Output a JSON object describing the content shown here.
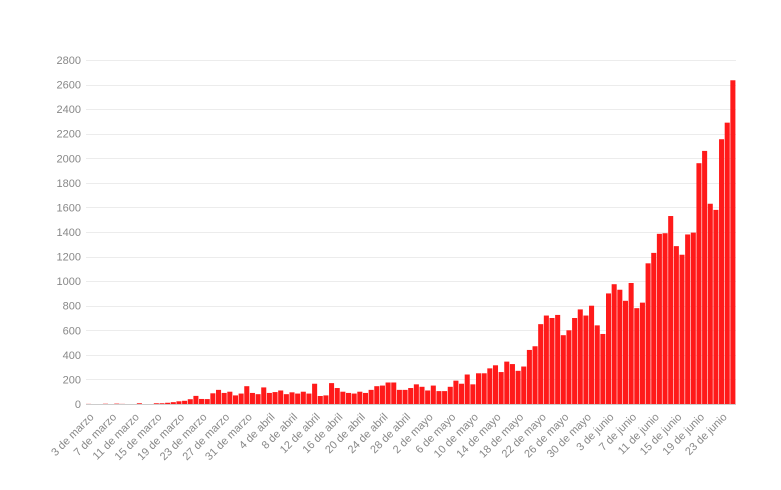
{
  "chart_data": {
    "type": "bar",
    "title": "",
    "xlabel": "",
    "ylabel": "",
    "ylim": [
      0,
      2800
    ],
    "y_ticks": [
      0,
      200,
      400,
      600,
      800,
      1000,
      1200,
      1400,
      1600,
      1800,
      2000,
      2200,
      2400,
      2600,
      2800
    ],
    "grid": true,
    "x_tick_labels": [
      "3 de marzo",
      "7 de marzo",
      "11 de marzo",
      "15 de marzo",
      "19 de marzo",
      "23 de marzo",
      "27 de marzo",
      "31 de marzo",
      "4 de abril",
      "8 de abril",
      "12 de abril",
      "16 de abril",
      "20 de abril",
      "24 de abril",
      "28 de abril",
      "2 de mayo",
      "6 de mayo",
      "10 de mayo",
      "14 de mayo",
      "18 de mayo",
      "22 de mayo",
      "26 de mayo",
      "30 de mayo",
      "3 de junio",
      "7 de junio",
      "11 de junio",
      "15 de junio",
      "19 de junio",
      "23 de junio"
    ],
    "bar_color": "#ff1a1a",
    "series": [
      {
        "values": [
          1,
          0,
          0,
          2,
          0,
          3,
          1,
          0,
          0,
          6,
          0,
          0,
          6,
          6,
          10,
          15,
          22,
          26,
          39,
          66,
          41,
          40,
          87,
          115,
          90,
          100,
          70,
          85,
          145,
          90,
          80,
          135,
          90,
          97,
          110,
          80,
          95,
          85,
          100,
          85,
          165,
          65,
          70,
          170,
          130,
          100,
          90,
          85,
          100,
          90,
          115,
          145,
          150,
          175,
          175,
          115,
          115,
          130,
          160,
          140,
          110,
          150,
          105,
          105,
          140,
          190,
          165,
          240,
          160,
          250,
          250,
          290,
          315,
          260,
          345,
          325,
          270,
          305,
          440,
          470,
          650,
          720,
          700,
          725,
          560,
          600,
          700,
          770,
          720,
          800,
          640,
          570,
          900,
          975,
          930,
          840,
          985,
          780,
          825,
          1145,
          1230,
          1385,
          1390,
          1530,
          1285,
          1215,
          1380,
          1395,
          1960,
          2060,
          1630,
          1580,
          2155,
          2290,
          2635
        ]
      }
    ]
  }
}
